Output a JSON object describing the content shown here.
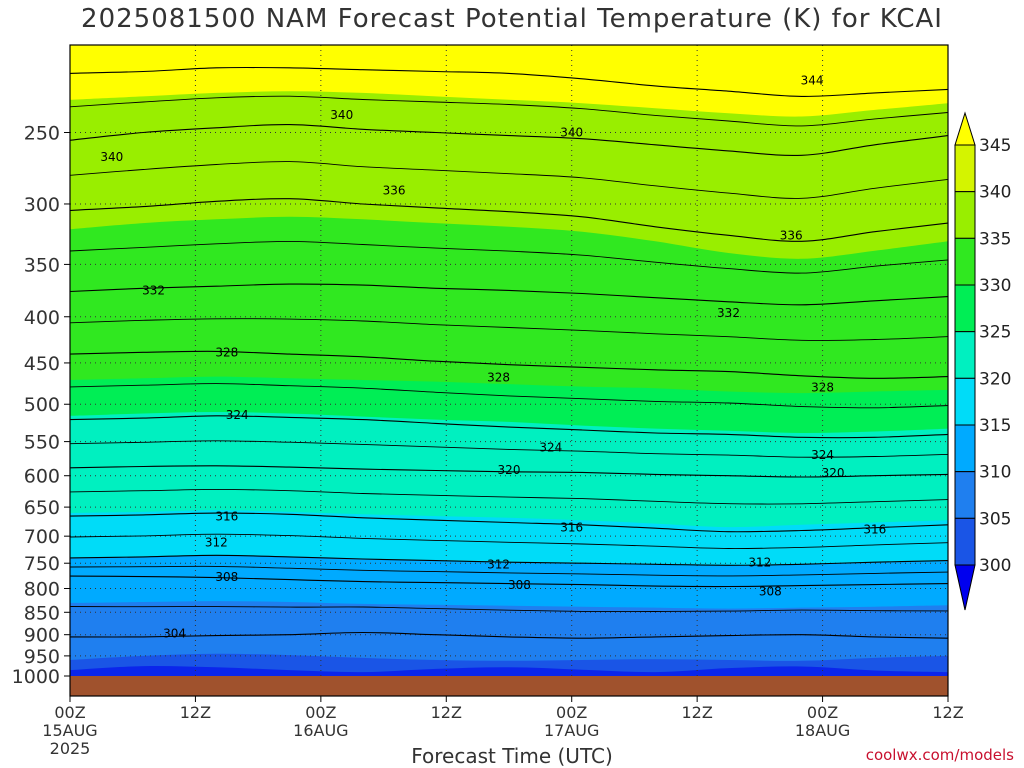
{
  "chart_data": {
    "type": "heatmap",
    "title": "2025081500 NAM Forecast Potential Temperature (K) for KCAI",
    "xlabel": "Forecast Time (UTC)",
    "ylabel": "",
    "credit": "coolwx.com/models",
    "y_axis": {
      "scale": "log",
      "reversed": true,
      "unit": "hPa",
      "ylim": [
        1000,
        200
      ],
      "ticks": [
        250,
        300,
        350,
        400,
        450,
        500,
        550,
        600,
        650,
        700,
        750,
        800,
        850,
        900,
        950,
        1000
      ]
    },
    "x_axis": {
      "xlim_hours": [
        0,
        84
      ],
      "ticks": [
        {
          "hour": 0,
          "label": "00Z",
          "sub": "15AUG",
          "sub2": "2025"
        },
        {
          "hour": 12,
          "label": "12Z",
          "sub": "",
          "sub2": ""
        },
        {
          "hour": 24,
          "label": "00Z",
          "sub": "16AUG",
          "sub2": ""
        },
        {
          "hour": 36,
          "label": "12Z",
          "sub": "",
          "sub2": ""
        },
        {
          "hour": 48,
          "label": "00Z",
          "sub": "17AUG",
          "sub2": ""
        },
        {
          "hour": 60,
          "label": "12Z",
          "sub": "",
          "sub2": ""
        },
        {
          "hour": 72,
          "label": "00Z",
          "sub": "18AUG",
          "sub2": ""
        },
        {
          "hour": 84,
          "label": "12Z",
          "sub": "",
          "sub2": ""
        }
      ]
    },
    "grid": true,
    "colorbar": {
      "levels": [
        300,
        305,
        310,
        315,
        320,
        325,
        330,
        335,
        340,
        345
      ],
      "labels": [
        "300",
        "305",
        "310",
        "315",
        "320",
        "325",
        "330",
        "335",
        "340",
        "345"
      ],
      "colors": [
        "#0000ee",
        "#1a55e6",
        "#1f7fef",
        "#00aaff",
        "#00dcf8",
        "#00f0c0",
        "#00ee55",
        "#30e820",
        "#99ee00",
        "#d4f400",
        "#ffff00"
      ],
      "position": "right"
    },
    "contours": [
      {
        "value": 304,
        "label": "304",
        "pressure_profile": [
          905,
          905,
          902,
          900,
          895,
          900,
          905,
          908,
          905,
          902,
          900,
          905,
          908
        ]
      },
      {
        "value": 308,
        "label": "308",
        "pressure_profile": [
          775,
          776,
          778,
          782,
          786,
          788,
          790,
          792,
          795,
          796,
          794,
          792,
          790
        ]
      },
      {
        "value": 312,
        "label": "312",
        "pressure_profile": [
          740,
          738,
          735,
          738,
          742,
          745,
          748,
          750,
          752,
          754,
          752,
          748,
          745
        ]
      },
      {
        "value": 316,
        "label": "316",
        "pressure_profile": [
          665,
          663,
          660,
          662,
          668,
          672,
          676,
          680,
          686,
          692,
          690,
          685,
          680
        ]
      },
      {
        "value": 320,
        "label": "320",
        "pressure_profile": [
          588,
          586,
          585,
          587,
          590,
          592,
          594,
          595,
          598,
          600,
          602,
          600,
          598
        ]
      },
      {
        "value": 324,
        "label": "324",
        "pressure_profile": [
          520,
          518,
          515,
          517,
          520,
          525,
          530,
          534,
          538,
          540,
          544,
          544,
          540
        ]
      },
      {
        "value": 328,
        "label": "328",
        "pressure_profile": [
          440,
          438,
          437,
          440,
          443,
          448,
          452,
          455,
          458,
          460,
          465,
          468,
          466
        ]
      },
      {
        "value": 332,
        "label": "332",
        "pressure_profile": [
          375,
          372,
          370,
          368,
          369,
          372,
          374,
          377,
          381,
          385,
          388,
          384,
          380
        ]
      },
      {
        "value": 336,
        "label": "336",
        "pressure_profile": [
          305,
          302,
          298,
          296,
          300,
          303,
          306,
          310,
          318,
          325,
          330,
          322,
          315
        ]
      },
      {
        "value": 340,
        "label": "340",
        "pressure_profile": [
          255,
          250,
          247,
          245,
          248,
          250,
          252,
          254,
          258,
          262,
          265,
          258,
          252
        ]
      },
      {
        "value": 344,
        "label": "344",
        "pressure_profile": [
          215,
          214,
          212,
          212,
          213,
          214,
          215,
          218,
          222,
          225,
          228,
          226,
          224
        ]
      }
    ],
    "contour_label_positions": [
      {
        "value": 304,
        "label": "304",
        "hour": 10,
        "pressure": 897
      },
      {
        "value": 308,
        "label": "308",
        "hour": 15,
        "pressure": 777
      },
      {
        "value": 308,
        "label": "308",
        "hour": 43,
        "pressure": 793
      },
      {
        "value": 308,
        "label": "308",
        "hour": 67,
        "pressure": 806
      },
      {
        "value": 312,
        "label": "312",
        "hour": 14,
        "pressure": 711
      },
      {
        "value": 312,
        "label": "312",
        "hour": 41,
        "pressure": 752
      },
      {
        "value": 312,
        "label": "312",
        "hour": 66,
        "pressure": 749
      },
      {
        "value": 316,
        "label": "316",
        "hour": 15,
        "pressure": 666
      },
      {
        "value": 316,
        "label": "316",
        "hour": 48,
        "pressure": 685
      },
      {
        "value": 316,
        "label": "316",
        "hour": 77,
        "pressure": 688
      },
      {
        "value": 320,
        "label": "320",
        "hour": 42,
        "pressure": 591
      },
      {
        "value": 320,
        "label": "320",
        "hour": 73,
        "pressure": 596
      },
      {
        "value": 324,
        "label": "324",
        "hour": 16,
        "pressure": 514
      },
      {
        "value": 324,
        "label": "324",
        "hour": 46,
        "pressure": 558
      },
      {
        "value": 324,
        "label": "324",
        "hour": 72,
        "pressure": 569
      },
      {
        "value": 328,
        "label": "328",
        "hour": 15,
        "pressure": 438
      },
      {
        "value": 328,
        "label": "328",
        "hour": 41,
        "pressure": 467
      },
      {
        "value": 328,
        "label": "328",
        "hour": 72,
        "pressure": 479
      },
      {
        "value": 332,
        "label": "332",
        "hour": 8,
        "pressure": 374
      },
      {
        "value": 332,
        "label": "332",
        "hour": 63,
        "pressure": 396
      },
      {
        "value": 336,
        "label": "336",
        "hour": 31,
        "pressure": 290
      },
      {
        "value": 336,
        "label": "336",
        "hour": 69,
        "pressure": 325
      },
      {
        "value": 340,
        "label": "340",
        "hour": 4,
        "pressure": 266
      },
      {
        "value": 340,
        "label": "340",
        "hour": 26,
        "pressure": 239
      },
      {
        "value": 340,
        "label": "340",
        "hour": 48,
        "pressure": 250
      },
      {
        "value": 344,
        "label": "344",
        "hour": 71,
        "pressure": 219
      }
    ],
    "color_band_boundaries": [
      {
        "value": 305,
        "pressure_profile": [
          960,
          950,
          945,
          948,
          955,
          960,
          962,
          960,
          958,
          960,
          962,
          955,
          950
        ]
      },
      {
        "value": 310,
        "pressure_profile": [
          830,
          828,
          826,
          828,
          832,
          834,
          836,
          838,
          840,
          842,
          840,
          838,
          835
        ]
      },
      {
        "value": 315,
        "pressure_profile": [
          740,
          738,
          735,
          737,
          742,
          745,
          748,
          750,
          753,
          755,
          752,
          748,
          745
        ]
      },
      {
        "value": 320,
        "pressure_profile": [
          660,
          658,
          655,
          658,
          662,
          665,
          668,
          672,
          678,
          684,
          680,
          676,
          672
        ]
      },
      {
        "value": 325,
        "pressure_profile": [
          515,
          512,
          510,
          512,
          516,
          520,
          523,
          528,
          532,
          535,
          538,
          536,
          532
        ]
      },
      {
        "value": 330,
        "pressure_profile": [
          470,
          468,
          466,
          468,
          470,
          472,
          475,
          478,
          480,
          484,
          486,
          484,
          482
        ]
      },
      {
        "value": 335,
        "pressure_profile": [
          320,
          315,
          312,
          310,
          312,
          315,
          318,
          322,
          330,
          340,
          345,
          338,
          330
        ]
      },
      {
        "value": 340,
        "pressure_profile": [
          230,
          228,
          226,
          225,
          226,
          228,
          230,
          232,
          235,
          238,
          240,
          236,
          232
        ]
      }
    ],
    "ground_pressure": 1000
  }
}
